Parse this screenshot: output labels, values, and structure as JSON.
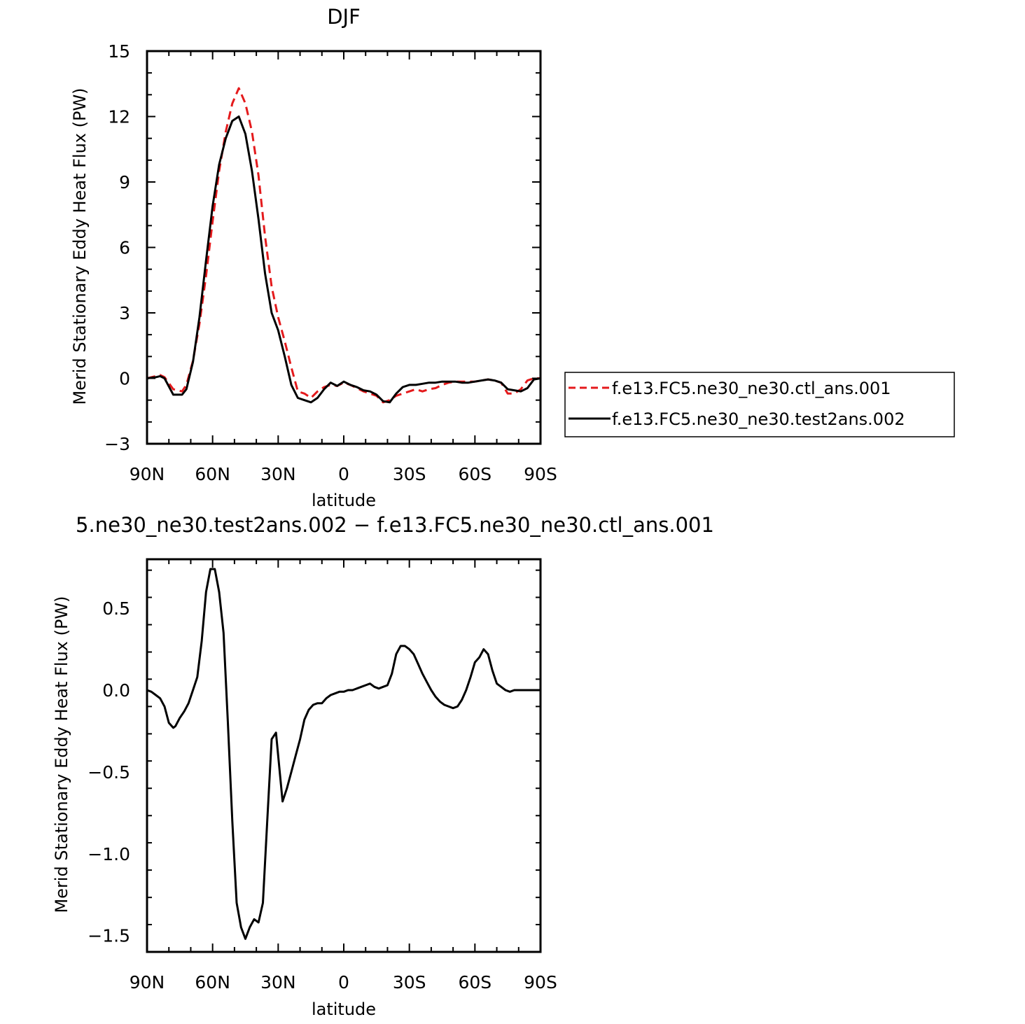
{
  "chart_data": [
    {
      "type": "line",
      "title": "DJF",
      "xlabel": "latitude",
      "ylabel": "Merid Stationary Eddy Heat Flux (PW)",
      "xlim": [
        90,
        -90
      ],
      "ylim": [
        -3,
        15
      ],
      "xticks": [
        90,
        60,
        30,
        0,
        -30,
        -60,
        -90
      ],
      "xtick_labels": [
        "90N",
        "60N",
        "30N",
        "0",
        "30S",
        "60S",
        "90S"
      ],
      "yticks": [
        -3,
        0,
        3,
        6,
        9,
        12,
        15
      ],
      "ytick_labels": [
        "−3",
        "0",
        "3",
        "6",
        "9",
        "12",
        "15"
      ],
      "grid": false,
      "legend_position": "right",
      "series": [
        {
          "name": "f.e13.FC5.ne30_ne30.ctl_ans.001",
          "color": "#e41a1c",
          "dash": "dashed",
          "x": [
            90,
            86,
            84,
            82,
            78,
            74,
            72,
            69,
            66,
            63,
            60,
            57,
            54,
            51,
            48,
            45,
            42,
            39,
            36,
            33,
            30,
            27,
            24,
            21,
            18,
            15,
            12,
            9,
            6,
            3,
            0,
            -3,
            -6,
            -9,
            -12,
            -15,
            -18,
            -21,
            -24,
            -27,
            -30,
            -33,
            -36,
            -39,
            -42,
            -45,
            -48,
            -51,
            -54,
            -57,
            -60,
            -63,
            -66,
            -69,
            -72,
            -75,
            -78,
            -81,
            -84,
            -87,
            -90
          ],
          "y": [
            0,
            0.1,
            0.15,
            0.05,
            -0.5,
            -0.6,
            -0.3,
            0.8,
            2.5,
            4.7,
            7.2,
            9.5,
            11.3,
            12.6,
            13.3,
            12.6,
            11.3,
            9.3,
            6.5,
            4.2,
            2.8,
            1.7,
            0.5,
            -0.6,
            -0.7,
            -0.9,
            -0.6,
            -0.4,
            -0.3,
            -0.35,
            -0.2,
            -0.3,
            -0.45,
            -0.6,
            -0.7,
            -0.8,
            -1.1,
            -1.0,
            -0.8,
            -0.7,
            -0.6,
            -0.5,
            -0.6,
            -0.5,
            -0.45,
            -0.3,
            -0.2,
            -0.15,
            -0.15,
            -0.15,
            -0.15,
            -0.1,
            -0.05,
            -0.1,
            -0.2,
            -0.7,
            -0.7,
            -0.5,
            -0.1,
            0,
            0
          ]
        },
        {
          "name": "f.e13.FC5.ne30_ne30.test2ans.002",
          "color": "#000000",
          "dash": "solid",
          "x": [
            90,
            86,
            84,
            82,
            78,
            74,
            72,
            69,
            66,
            63,
            60,
            57,
            54,
            51,
            48,
            45,
            42,
            39,
            36,
            33,
            30,
            27,
            24,
            21,
            18,
            15,
            12,
            9,
            6,
            3,
            0,
            -3,
            -6,
            -9,
            -12,
            -15,
            -18,
            -21,
            -24,
            -27,
            -30,
            -33,
            -36,
            -39,
            -42,
            -45,
            -48,
            -51,
            -54,
            -57,
            -60,
            -63,
            -66,
            -69,
            -72,
            -75,
            -78,
            -81,
            -84,
            -87,
            -90
          ],
          "y": [
            0,
            0.05,
            0.1,
            0,
            -0.75,
            -0.75,
            -0.5,
            0.75,
            2.8,
            5.4,
            7.9,
            9.8,
            11.0,
            11.8,
            12.0,
            11.2,
            9.5,
            7.3,
            4.8,
            3.0,
            2.2,
            1.0,
            -0.3,
            -0.9,
            -1.0,
            -1.1,
            -0.9,
            -0.5,
            -0.2,
            -0.35,
            -0.15,
            -0.3,
            -0.4,
            -0.55,
            -0.6,
            -0.75,
            -1.05,
            -1.1,
            -0.7,
            -0.4,
            -0.3,
            -0.3,
            -0.25,
            -0.2,
            -0.2,
            -0.15,
            -0.15,
            -0.15,
            -0.2,
            -0.2,
            -0.15,
            -0.1,
            -0.05,
            -0.1,
            -0.2,
            -0.5,
            -0.55,
            -0.6,
            -0.45,
            -0.05,
            0
          ]
        }
      ]
    },
    {
      "type": "line",
      "title": "5.ne30_ne30.test2ans.002 − f.e13.FC5.ne30_ne30.ctl_ans.001",
      "xlabel": "latitude",
      "ylabel": "Merid Stationary Eddy Heat Flux (PW)",
      "xlim": [
        90,
        -90
      ],
      "ylim": [
        -1.6,
        0.8
      ],
      "xticks": [
        90,
        60,
        30,
        0,
        -30,
        -60,
        -90
      ],
      "xtick_labels": [
        "90N",
        "60N",
        "30N",
        "0",
        "30S",
        "60S",
        "90S"
      ],
      "yticks": [
        -1.5,
        -1.0,
        -0.5,
        0.0,
        0.5
      ],
      "ytick_labels": [
        "−1.5",
        "−1.0",
        "−0.5",
        "0.0",
        "0.5"
      ],
      "grid": false,
      "series": [
        {
          "color": "#000000",
          "dash": "solid",
          "x": [
            90,
            88,
            86,
            84,
            82,
            80,
            78,
            77,
            75,
            73,
            71,
            69,
            67,
            65,
            63,
            61,
            59,
            57,
            55,
            53,
            51,
            49,
            47,
            45,
            43,
            41,
            39,
            37,
            35,
            33,
            31,
            30,
            28,
            26,
            24,
            22,
            20,
            18,
            16,
            14,
            12,
            10,
            8,
            6,
            4,
            2,
            0,
            -2,
            -4,
            -6,
            -8,
            -10,
            -12,
            -14,
            -16,
            -18,
            -20,
            -22,
            -24,
            -26,
            -28,
            -30,
            -32,
            -34,
            -36,
            -38,
            -40,
            -42,
            -44,
            -46,
            -48,
            -50,
            -52,
            -54,
            -56,
            -58,
            -60,
            -62,
            -64,
            -66,
            -68,
            -70,
            -72,
            -74,
            -76,
            -78,
            -80,
            -82,
            -84,
            -86,
            -88,
            -90
          ],
          "y": [
            0,
            -0.01,
            -0.03,
            -0.05,
            -0.1,
            -0.2,
            -0.23,
            -0.22,
            -0.17,
            -0.13,
            -0.08,
            0.0,
            0.08,
            0.3,
            0.6,
            0.74,
            0.74,
            0.6,
            0.35,
            -0.2,
            -0.8,
            -1.3,
            -1.45,
            -1.52,
            -1.45,
            -1.4,
            -1.42,
            -1.3,
            -0.8,
            -0.3,
            -0.26,
            -0.4,
            -0.68,
            -0.6,
            -0.5,
            -0.4,
            -0.3,
            -0.18,
            -0.12,
            -0.09,
            -0.08,
            -0.08,
            -0.05,
            -0.03,
            -0.02,
            -0.01,
            -0.01,
            0.0,
            0.0,
            0.01,
            0.02,
            0.03,
            0.04,
            0.02,
            0.01,
            0.02,
            0.03,
            0.1,
            0.22,
            0.27,
            0.27,
            0.25,
            0.22,
            0.16,
            0.1,
            0.05,
            0.0,
            -0.04,
            -0.07,
            -0.09,
            -0.1,
            -0.11,
            -0.1,
            -0.06,
            0.0,
            0.08,
            0.17,
            0.2,
            0.25,
            0.22,
            0.12,
            0.04,
            0.02,
            0.0,
            -0.01,
            0.0,
            0,
            0,
            0,
            0,
            0,
            0
          ]
        }
      ]
    }
  ]
}
